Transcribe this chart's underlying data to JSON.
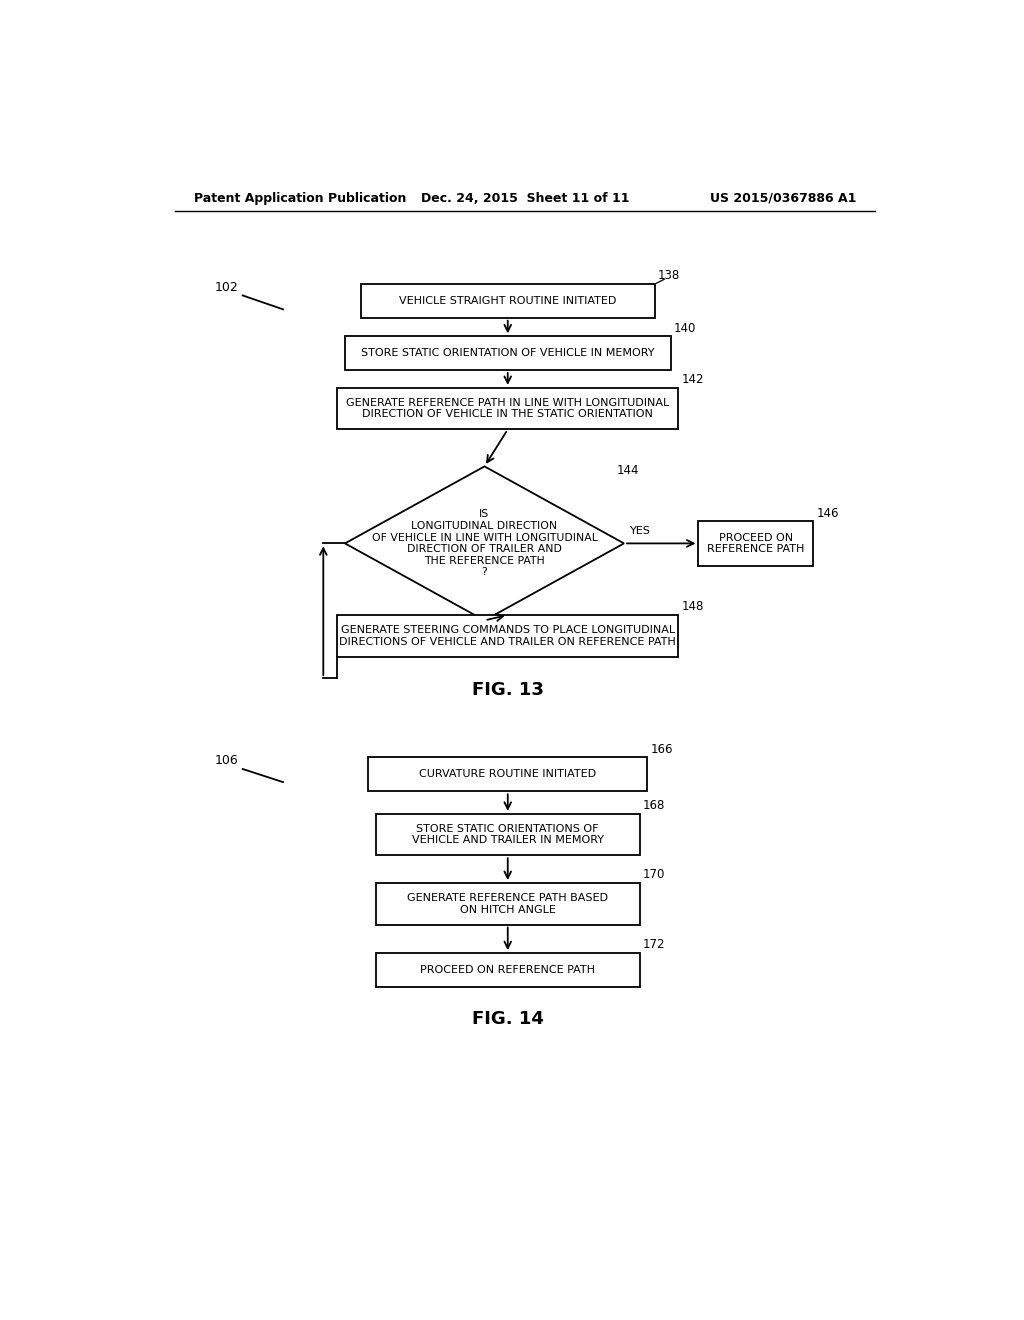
{
  "bg_color": "#ffffff",
  "header_left": "Patent Application Publication",
  "header_mid": "Dec. 24, 2015  Sheet 11 of 11",
  "header_right": "US 2015/0367886 A1",
  "fig13_label": "FIG. 13",
  "fig14_label": "FIG. 14"
}
